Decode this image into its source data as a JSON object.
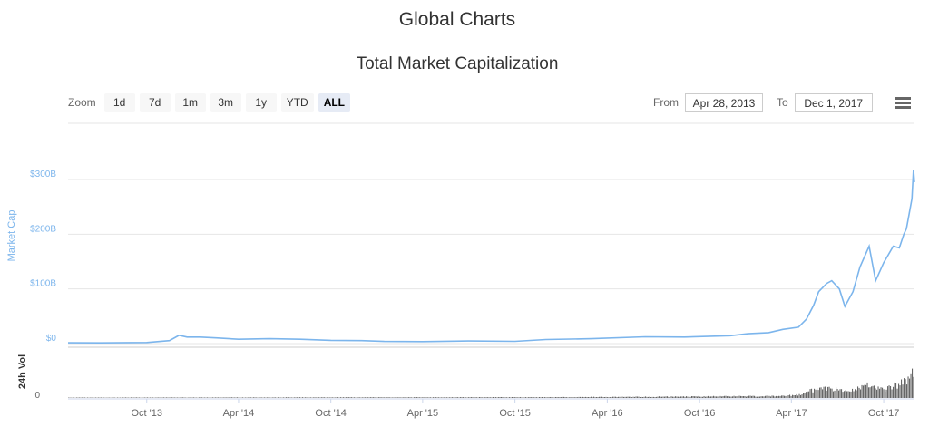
{
  "header": {
    "title": "Global Charts",
    "subtitle": "Total Market Capitalization"
  },
  "toolbar": {
    "zoom_label": "Zoom",
    "zoom_buttons": [
      "1d",
      "7d",
      "1m",
      "3m",
      "1y",
      "YTD",
      "ALL"
    ],
    "active_zoom": "ALL",
    "from_label": "From",
    "from_value": "Apr 28, 2013",
    "to_label": "To",
    "to_value": "Dec 1, 2017",
    "menu_icon": "hamburger-menu-icon"
  },
  "colors": {
    "line": "#7cb5ec",
    "volume": "#666666",
    "grid": "#e6e6e6"
  },
  "chart_data": {
    "type": "line",
    "title": "Total Market Capitalization",
    "x_range": [
      "2013-04-28",
      "2017-12-01"
    ],
    "x_tick_labels": [
      "Oct '13",
      "Apr '14",
      "Oct '14",
      "Apr '15",
      "Oct '15",
      "Apr '16",
      "Oct '16",
      "Apr '17",
      "Oct '17"
    ],
    "ylabel": "Market Cap",
    "ylim": [
      0,
      300
    ],
    "y_unit": "B USD",
    "y_tick_labels": [
      "$0",
      "$100B",
      "$200B",
      "$300B"
    ],
    "grid": true,
    "series": [
      {
        "x": [
          "2013-04-28",
          "2013-07-01",
          "2013-10-01",
          "2013-11-15",
          "2013-12-04",
          "2013-12-20",
          "2014-01-15",
          "2014-02-15",
          "2014-04-01",
          "2014-06-01",
          "2014-08-01",
          "2014-10-01",
          "2014-12-01",
          "2015-01-15",
          "2015-04-01",
          "2015-07-01",
          "2015-10-01",
          "2015-12-01",
          "2016-03-01",
          "2016-06-15",
          "2016-09-01",
          "2016-12-01",
          "2017-01-05",
          "2017-02-15",
          "2017-03-15",
          "2017-04-15",
          "2017-05-01",
          "2017-05-15",
          "2017-05-25",
          "2017-06-10",
          "2017-06-20",
          "2017-07-05",
          "2017-07-16",
          "2017-08-01",
          "2017-08-15",
          "2017-09-02",
          "2017-09-15",
          "2017-10-01",
          "2017-10-20",
          "2017-11-01",
          "2017-11-10",
          "2017-11-15",
          "2017-11-20",
          "2017-11-26",
          "2017-11-29",
          "2017-12-01"
        ],
        "y": [
          1.5,
          1.3,
          2.0,
          5.5,
          15.0,
          12.0,
          12.0,
          10.5,
          8.0,
          9.0,
          8.0,
          6.0,
          5.5,
          4.0,
          3.7,
          4.8,
          4.1,
          7.5,
          9.0,
          12.5,
          12.0,
          14.5,
          18.0,
          20.0,
          26.0,
          30.0,
          45.0,
          70.0,
          95.0,
          110.0,
          115.0,
          100.0,
          68.0,
          95.0,
          140.0,
          178.0,
          115.0,
          148.0,
          178.0,
          175.0,
          200.0,
          210.0,
          235.0,
          265.0,
          318.0,
          295.0
        ]
      }
    ],
    "volume": {
      "label": "24h Vol",
      "y_tick_labels": [
        "0"
      ],
      "x": [
        "2013-04-28",
        "2016-01-01",
        "2017-03-01",
        "2017-04-15",
        "2017-05-15",
        "2017-06-15",
        "2017-07-15",
        "2017-08-15",
        "2017-09-05",
        "2017-09-15",
        "2017-10-01",
        "2017-10-15",
        "2017-11-01",
        "2017-11-12",
        "2017-11-20",
        "2017-11-28",
        "2017-12-01"
      ],
      "y": [
        0.01,
        0.02,
        0.05,
        0.08,
        0.22,
        0.25,
        0.18,
        0.28,
        0.35,
        0.25,
        0.22,
        0.3,
        0.35,
        0.55,
        0.4,
        0.75,
        1.0
      ]
    }
  }
}
